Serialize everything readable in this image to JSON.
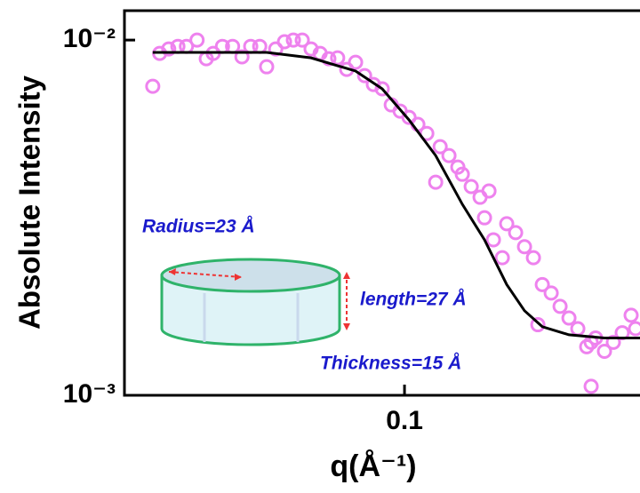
{
  "chart_data": {
    "type": "scatter",
    "xlabel": "q(Å⁻¹)",
    "ylabel": "Absolute Intensity",
    "xlog": true,
    "ylog": true,
    "xlim": [
      0.01185,
      0.601
    ],
    "ylim": [
      0.001,
      0.0121
    ],
    "xticks": [
      0.1
    ],
    "yticks": [
      {
        "value": 0.001,
        "label": "10⁻³"
      },
      {
        "value": 0.01,
        "label": "10⁻²"
      }
    ],
    "annotations": [
      "Radius=23 Å",
      "length=27 Å",
      "Thickness=15 Å"
    ],
    "series": [
      {
        "type": "scatter",
        "color": "#ee82ee",
        "x": [
          0.0147,
          0.0155,
          0.0166,
          0.0178,
          0.019,
          0.0206,
          0.0221,
          0.0233,
          0.025,
          0.027,
          0.029,
          0.031,
          0.0332,
          0.035,
          0.0375,
          0.0401,
          0.0429,
          0.0459,
          0.0491,
          0.0526,
          0.0562,
          0.0601,
          0.0644,
          0.0689,
          0.0738,
          0.0789,
          0.0844,
          0.0904,
          0.0967,
          0.1035,
          0.1107,
          0.1185,
          0.1268,
          0.1312,
          0.1403,
          0.1501,
          0.1553,
          0.1662,
          0.1778,
          0.1903,
          0.1839,
          0.1968,
          0.2106,
          0.2178,
          0.2331,
          0.2494,
          0.2669,
          0.2761,
          0.2856,
          0.3056,
          0.327,
          0.3499,
          0.3743,
          0.4005,
          0.4143,
          0.4286,
          0.4585,
          0.4906,
          0.5249,
          0.5617,
          0.581,
          0.4143
        ],
        "values": [
          0.00741,
          0.00917,
          0.00944,
          0.0096,
          0.0096,
          0.01,
          0.00886,
          0.00917,
          0.0096,
          0.0096,
          0.00897,
          0.0096,
          0.0096,
          0.00841,
          0.00944,
          0.00989,
          0.01,
          0.01,
          0.00944,
          0.00917,
          0.00886,
          0.00891,
          0.00827,
          0.00866,
          0.00794,
          0.0075,
          0.00729,
          0.00657,
          0.00631,
          0.00606,
          0.00579,
          0.00546,
          0.00398,
          0.00501,
          0.00473,
          0.00439,
          0.00419,
          0.00387,
          0.00361,
          0.00376,
          0.00316,
          0.00274,
          0.00244,
          0.00304,
          0.00287,
          0.00262,
          0.00244,
          0.00158,
          0.00205,
          0.00194,
          0.00178,
          0.00165,
          0.00154,
          0.00137,
          0.00141,
          0.00145,
          0.00133,
          0.00141,
          0.0015,
          0.00168,
          0.00154,
          0.00106
        ]
      },
      {
        "type": "line",
        "color": "#000000",
        "x": [
          0.0147,
          0.035,
          0.0491,
          0.0689,
          0.0844,
          0.1035,
          0.1268,
          0.1553,
          0.1839,
          0.2178,
          0.2494,
          0.2856,
          0.3499,
          0.4585,
          0.601
        ],
        "values": [
          0.00923,
          0.00923,
          0.00891,
          0.00818,
          0.00729,
          0.00596,
          0.00473,
          0.00345,
          0.00274,
          0.00205,
          0.00173,
          0.00156,
          0.00148,
          0.00145,
          0.00145
        ]
      }
    ]
  }
}
